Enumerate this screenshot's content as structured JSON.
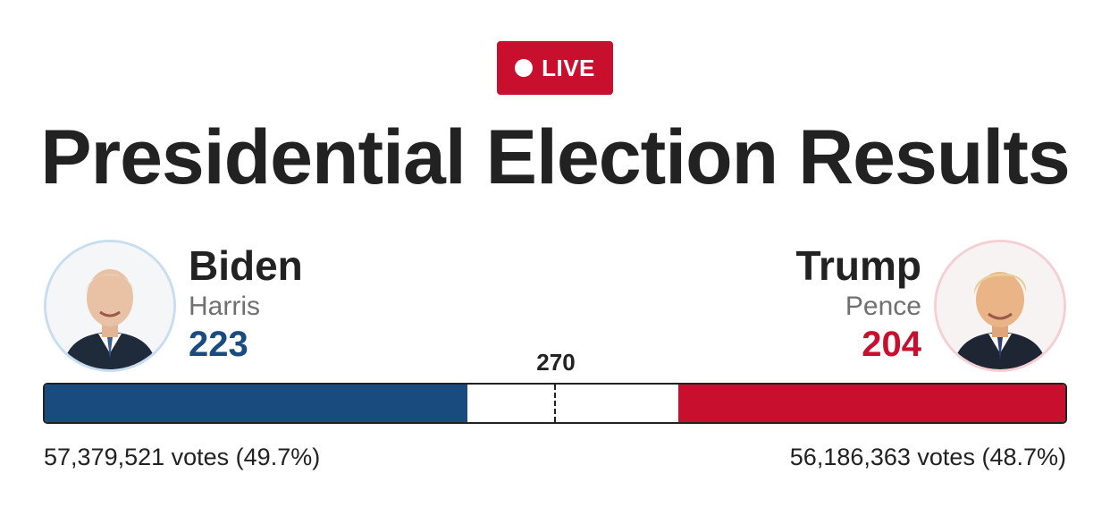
{
  "live_badge": {
    "label": "LIVE"
  },
  "title": "Presidential Election Results",
  "threshold": {
    "value": 270,
    "label": "270"
  },
  "total_electoral_votes": 538,
  "colors": {
    "democrat": "#1a4b7f",
    "republican": "#c8102e",
    "live": "#c8102e"
  },
  "candidates": {
    "left": {
      "name": "Biden",
      "running_mate": "Harris",
      "electoral_votes": 223,
      "electoral_votes_label": "223",
      "votes_text": "57,379,521 votes (49.7%)",
      "avatar_icon": "biden-portrait"
    },
    "right": {
      "name": "Trump",
      "running_mate": "Pence",
      "electoral_votes": 204,
      "electoral_votes_label": "204",
      "votes_text": "56,186,363 votes (48.7%)",
      "avatar_icon": "trump-portrait"
    }
  }
}
